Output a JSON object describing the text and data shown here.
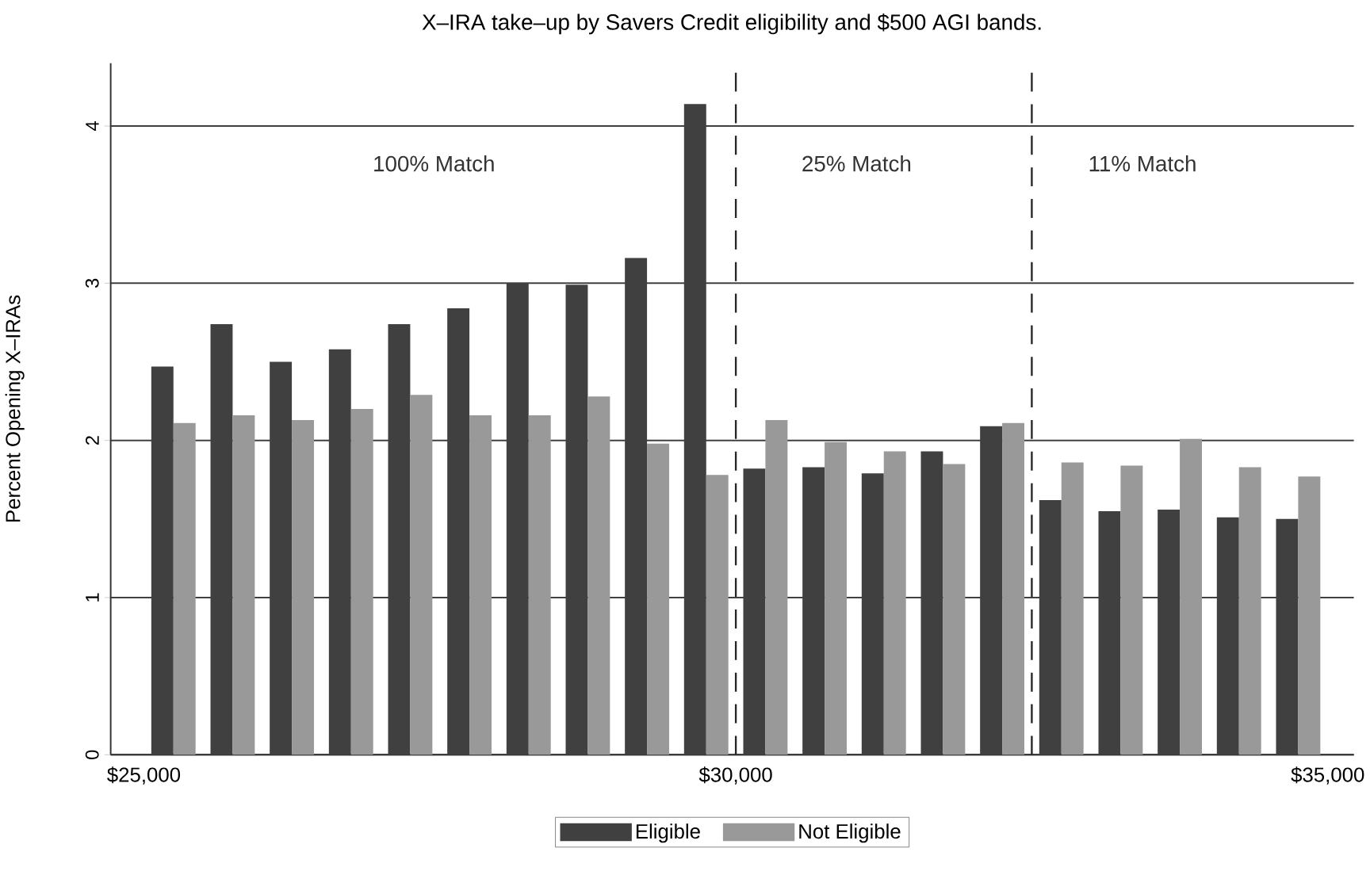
{
  "chart_data": {
    "type": "bar",
    "title": "X–IRA take–up by Savers Credit eligibility and $500 AGI bands.",
    "ylabel": "Percent Opening X–IRAs",
    "x": [
      25250,
      25750,
      26250,
      26750,
      27250,
      27750,
      28250,
      28750,
      29250,
      29750,
      30250,
      30750,
      31250,
      31750,
      32250,
      32750,
      33250,
      33750,
      34250,
      34750
    ],
    "series": [
      {
        "name": "Eligible",
        "color": "#404040",
        "values": [
          2.47,
          2.74,
          2.5,
          2.58,
          2.74,
          2.84,
          3.0,
          2.99,
          3.16,
          4.14,
          1.82,
          1.83,
          1.79,
          1.93,
          2.09,
          1.62,
          1.55,
          1.56,
          1.51,
          1.5
        ]
      },
      {
        "name": "Not Eligible",
        "color": "#999999",
        "values": [
          2.11,
          2.16,
          2.13,
          2.2,
          2.29,
          2.16,
          2.16,
          2.28,
          1.98,
          1.78,
          2.13,
          1.99,
          1.93,
          1.85,
          2.11,
          1.86,
          1.84,
          2.01,
          1.83,
          1.77
        ]
      }
    ],
    "xlim": [
      24720,
      35220
    ],
    "ylim": [
      0,
      4.4
    ],
    "xticks": [
      {
        "value": 25000,
        "label": "$25,000"
      },
      {
        "value": 30000,
        "label": "$30,000"
      },
      {
        "value": 35000,
        "label": "$35,000"
      }
    ],
    "yticks": [
      0,
      1,
      2,
      3,
      4
    ],
    "grid": "y",
    "legend": "bottom",
    "ref_lines": [
      {
        "axis": "x",
        "value": 30000,
        "line_style": "dashed"
      },
      {
        "axis": "x",
        "value": 32500,
        "line_style": "dashed"
      }
    ],
    "annotations": [
      "100% Match",
      "25% Match",
      "11% Match"
    ]
  }
}
